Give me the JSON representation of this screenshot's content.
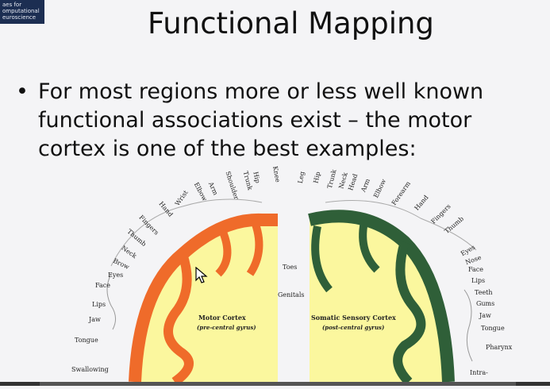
{
  "logo": {
    "line1": "aes for",
    "line2": "omputational",
    "line3": "euroscience"
  },
  "slide": {
    "title": "Functional Mapping",
    "bullet_lines": [
      "For most regions more or less well known",
      "functional associations exist – the motor",
      "cortex is one of the best examples:"
    ]
  },
  "figure": {
    "motor_title": "Motor Cortex",
    "motor_sub": "(pre-central gyrus)",
    "sensory_title": "Somatic Sensory Cortex",
    "sensory_sub": "(post-central gyrus)",
    "left_labels": [
      "Knee",
      "Hip",
      "Trunk",
      "Shoulder",
      "Arm",
      "Elbow",
      "Wrist",
      "Hand",
      "Fingers",
      "Thumb",
      "Neck",
      "Brow",
      "Eyes",
      "Face",
      "Lips",
      "Jaw",
      "Tongue",
      "Swallowing"
    ],
    "right_labels": [
      "Leg",
      "Hip",
      "Trunk",
      "Neck",
      "Head",
      "Arm",
      "Elbow",
      "Forearm",
      "Hand",
      "Fingers",
      "Thumb",
      "Eyes",
      "Nose",
      "Face",
      "Lips",
      "Teeth",
      "Gums",
      "Jaw",
      "Tongue",
      "Pharynx",
      "Intra-"
    ],
    "center_labels": [
      "Toes",
      "Genitals"
    ],
    "colors": {
      "motor": "#ef6b2a",
      "sensory": "#2f5f38",
      "fill": "#fbf79e"
    }
  }
}
